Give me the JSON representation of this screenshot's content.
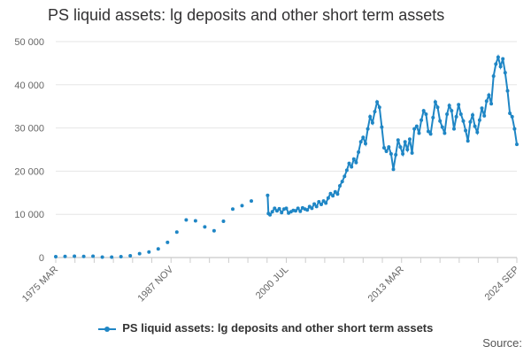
{
  "chart_data": {
    "type": "line",
    "title": "PS liquid assets: lg deposits and other short term assets",
    "xlabel": "",
    "ylabel": "",
    "ylim": [
      0,
      50000
    ],
    "xlim": [
      "1975-03",
      "2024-09"
    ],
    "y_ticks": [
      "0",
      "10 000",
      "20 000",
      "30 000",
      "40 000",
      "50 000"
    ],
    "x_ticks": [
      "1975 MAR",
      "1987 NOV",
      "2000 JUL",
      "2013 MAR",
      "2024 SEP"
    ],
    "grid": true,
    "legend_position": "bottom",
    "colors": {
      "series": "#206095",
      "line": "#1f86c5"
    },
    "series": [
      {
        "name": "PS liquid assets: lg deposits and other short term assets",
        "points": [
          [
            "1975-03",
            200
          ],
          [
            "1976-03",
            250
          ],
          [
            "1977-03",
            300
          ],
          [
            "1978-03",
            250
          ],
          [
            "1979-03",
            300
          ],
          [
            "1980-03",
            100
          ],
          [
            "1981-03",
            100
          ],
          [
            "1982-03",
            200
          ],
          [
            "1983-03",
            400
          ],
          [
            "1984-03",
            900
          ],
          [
            "1985-03",
            1300
          ],
          [
            "1986-03",
            2000
          ],
          [
            "1987-03",
            3500
          ],
          [
            "1988-03",
            5900
          ],
          [
            "1989-03",
            8700
          ],
          [
            "1990-03",
            8500
          ],
          [
            "1991-03",
            7100
          ],
          [
            "1992-03",
            6200
          ],
          [
            "1993-03",
            8400
          ],
          [
            "1994-03",
            11200
          ],
          [
            "1995-03",
            12000
          ],
          [
            "1996-03",
            13100
          ],
          [
            "1997-12",
            14400
          ],
          [
            "1998-01",
            10200
          ],
          [
            "1998-03",
            9900
          ],
          [
            "1998-06",
            10600
          ],
          [
            "1998-09",
            11400
          ],
          [
            "1998-12",
            10800
          ],
          [
            "1999-03",
            11300
          ],
          [
            "1999-06",
            10400
          ],
          [
            "1999-09",
            11200
          ],
          [
            "1999-12",
            11400
          ],
          [
            "2000-03",
            10300
          ],
          [
            "2000-06",
            10600
          ],
          [
            "2000-09",
            10900
          ],
          [
            "2000-12",
            10800
          ],
          [
            "2001-03",
            11400
          ],
          [
            "2001-06",
            10700
          ],
          [
            "2001-09",
            11500
          ],
          [
            "2001-12",
            11200
          ],
          [
            "2002-03",
            11000
          ],
          [
            "2002-06",
            11800
          ],
          [
            "2002-09",
            11400
          ],
          [
            "2002-12",
            12400
          ],
          [
            "2003-03",
            11800
          ],
          [
            "2003-06",
            12900
          ],
          [
            "2003-09",
            12300
          ],
          [
            "2003-12",
            13100
          ],
          [
            "2004-03",
            12600
          ],
          [
            "2004-06",
            13800
          ],
          [
            "2004-09",
            14800
          ],
          [
            "2004-12",
            14300
          ],
          [
            "2005-03",
            15200
          ],
          [
            "2005-06",
            14700
          ],
          [
            "2005-09",
            16600
          ],
          [
            "2005-12",
            17600
          ],
          [
            "2006-03",
            18800
          ],
          [
            "2006-06",
            20200
          ],
          [
            "2006-09",
            21800
          ],
          [
            "2006-12",
            21000
          ],
          [
            "2007-03",
            22800
          ],
          [
            "2007-06",
            22000
          ],
          [
            "2007-09",
            24400
          ],
          [
            "2007-12",
            26800
          ],
          [
            "2008-03",
            27800
          ],
          [
            "2008-06",
            26400
          ],
          [
            "2008-09",
            29800
          ],
          [
            "2008-12",
            32600
          ],
          [
            "2009-03",
            31200
          ],
          [
            "2009-06",
            33800
          ],
          [
            "2009-09",
            36000
          ],
          [
            "2009-12",
            34800
          ],
          [
            "2010-03",
            30200
          ],
          [
            "2010-06",
            25400
          ],
          [
            "2010-09",
            24600
          ],
          [
            "2010-12",
            25600
          ],
          [
            "2011-03",
            24000
          ],
          [
            "2011-06",
            20400
          ],
          [
            "2011-09",
            23800
          ],
          [
            "2011-12",
            27200
          ],
          [
            "2012-03",
            25600
          ],
          [
            "2012-06",
            24000
          ],
          [
            "2012-09",
            26800
          ],
          [
            "2012-12",
            25000
          ],
          [
            "2013-03",
            27400
          ],
          [
            "2013-06",
            24200
          ],
          [
            "2013-09",
            29800
          ],
          [
            "2013-12",
            30400
          ],
          [
            "2014-03",
            28800
          ],
          [
            "2014-06",
            31800
          ],
          [
            "2014-09",
            34000
          ],
          [
            "2014-12",
            33200
          ],
          [
            "2015-03",
            29200
          ],
          [
            "2015-06",
            28600
          ],
          [
            "2015-09",
            32400
          ],
          [
            "2015-12",
            36000
          ],
          [
            "2016-03",
            34800
          ],
          [
            "2016-06",
            31600
          ],
          [
            "2016-09",
            30200
          ],
          [
            "2016-12",
            28800
          ],
          [
            "2017-03",
            33200
          ],
          [
            "2017-06",
            35200
          ],
          [
            "2017-09",
            34000
          ],
          [
            "2017-12",
            29800
          ],
          [
            "2018-03",
            32600
          ],
          [
            "2018-06",
            35400
          ],
          [
            "2018-09",
            33200
          ],
          [
            "2018-12",
            31600
          ],
          [
            "2019-03",
            29400
          ],
          [
            "2019-06",
            27000
          ],
          [
            "2019-09",
            31400
          ],
          [
            "2019-12",
            33000
          ],
          [
            "2020-03",
            30400
          ],
          [
            "2020-06",
            29000
          ],
          [
            "2020-09",
            31800
          ],
          [
            "2020-12",
            34600
          ],
          [
            "2021-03",
            32800
          ],
          [
            "2021-06",
            36200
          ],
          [
            "2021-09",
            37600
          ],
          [
            "2021-12",
            35600
          ],
          [
            "2022-03",
            42000
          ],
          [
            "2022-06",
            44800
          ],
          [
            "2022-09",
            46400
          ],
          [
            "2022-12",
            44200
          ],
          [
            "2023-03",
            46000
          ],
          [
            "2023-06",
            42800
          ],
          [
            "2023-09",
            38600
          ],
          [
            "2023-12",
            33400
          ],
          [
            "2024-03",
            32600
          ],
          [
            "2024-06",
            29800
          ],
          [
            "2024-09",
            26200
          ]
        ]
      }
    ]
  },
  "legend": {
    "label": "PS liquid assets: lg deposits and other short term assets"
  },
  "source": {
    "label": "Source:"
  }
}
